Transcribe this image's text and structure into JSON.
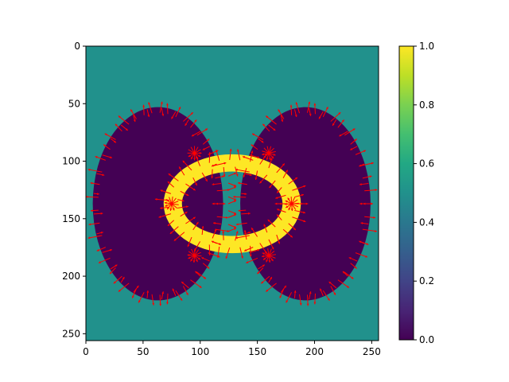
{
  "chart_data": {
    "type": "heatmap",
    "title": "",
    "xlabel": "",
    "ylabel": "",
    "image_size": [
      256,
      256
    ],
    "xlim": [
      0,
      256
    ],
    "ylim": [
      256,
      0
    ],
    "x_ticks": [
      "0",
      "50",
      "100",
      "150",
      "200",
      "250"
    ],
    "y_ticks": [
      "0",
      "50",
      "100",
      "150",
      "200",
      "250"
    ],
    "colormap": "viridis",
    "colorbar": {
      "range": [
        0.0,
        1.0
      ],
      "ticks": [
        "0.0",
        "0.2",
        "0.4",
        "0.6",
        "0.8",
        "1.0"
      ]
    },
    "regions": [
      {
        "name": "background",
        "value": 0.5
      },
      {
        "name": "left lobe",
        "shape": "ellipse",
        "cx": 63,
        "cy": 137,
        "rx": 57,
        "ry": 84,
        "value": 0.0
      },
      {
        "name": "right lobe",
        "shape": "ellipse",
        "cx": 192,
        "cy": 137,
        "rx": 57,
        "ry": 84,
        "value": 0.0
      },
      {
        "name": "ring",
        "shape": "ellipse-ring",
        "cx": 128,
        "cy": 137,
        "outer_rx": 60,
        "outer_ry": 43,
        "inner_rx": 44,
        "inner_ry": 28,
        "value": 1.0
      }
    ],
    "overlay": {
      "type": "quiver",
      "color": "#ff0000"
    }
  }
}
